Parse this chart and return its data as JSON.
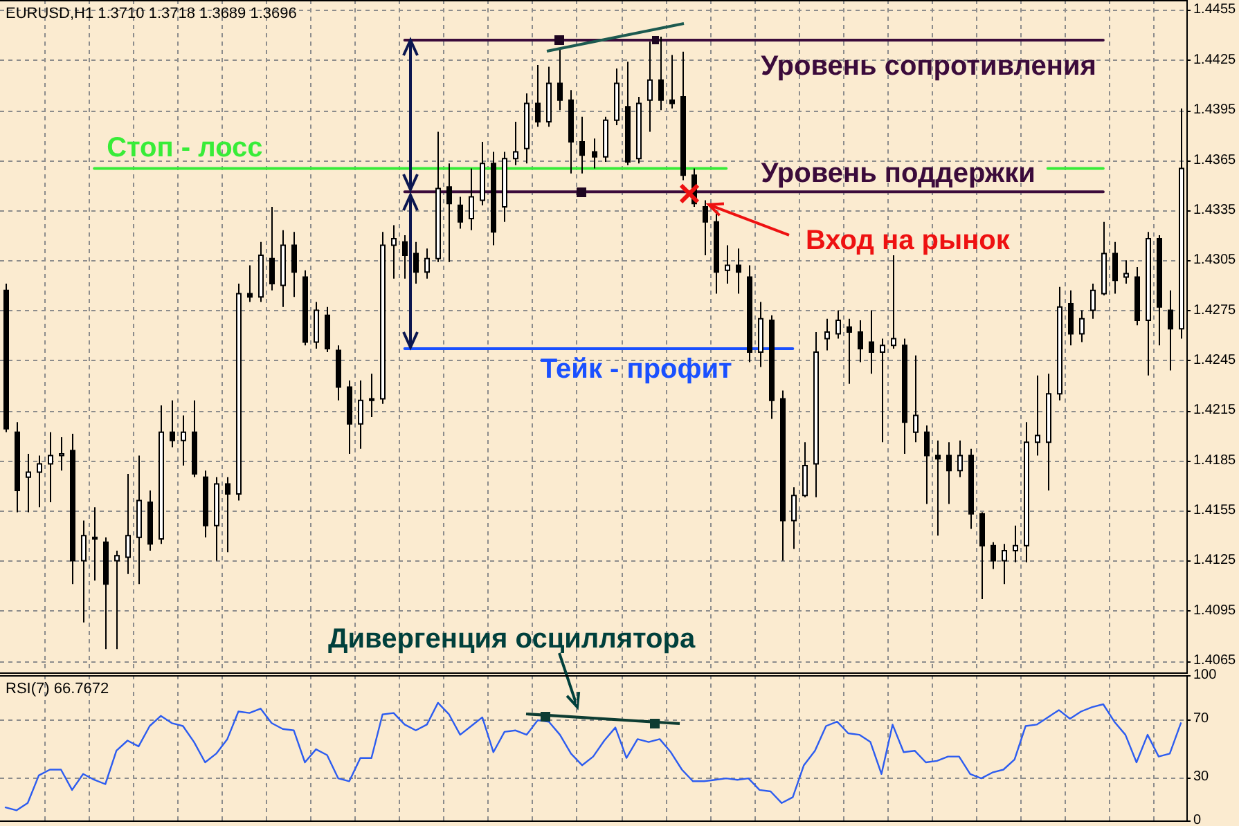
{
  "chart_data": [
    {
      "type": "candlestick",
      "title": "EURUSD,H1 1.3710 1.3718 1.3689 1.3696",
      "categories": [
        null,
        null,
        null,
        null,
        null,
        null,
        null,
        null,
        null,
        null,
        null,
        null,
        null,
        null,
        null,
        null,
        null,
        null,
        null,
        null,
        null,
        null,
        null,
        null,
        null,
        null,
        null,
        null,
        null,
        null,
        null,
        null,
        null,
        null,
        null,
        null,
        null,
        null,
        null,
        null,
        null,
        null,
        null,
        null,
        null,
        null,
        null,
        null,
        null,
        null,
        null,
        null,
        null,
        null,
        null,
        null,
        null,
        null,
        null,
        null,
        null,
        null,
        null,
        null,
        null,
        null,
        null,
        null,
        null,
        null,
        null,
        null,
        null,
        null,
        null,
        null,
        null,
        null,
        null,
        null,
        null,
        null,
        null,
        null,
        null,
        null,
        null,
        null,
        null,
        null,
        null,
        null,
        null,
        null,
        null,
        null,
        null,
        null,
        null,
        null,
        null,
        null,
        null,
        null,
        null,
        null,
        null
      ],
      "ohlc": [
        [
          1.4287,
          1.4291,
          1.4202,
          1.4204
        ],
        [
          1.4202,
          1.4208,
          1.4154,
          1.4167
        ],
        [
          1.4175,
          1.4189,
          1.4154,
          1.4178
        ],
        [
          1.4178,
          1.4188,
          1.4157,
          1.4183
        ],
        [
          1.4183,
          1.4202,
          1.416,
          1.4188
        ],
        [
          1.4188,
          1.4199,
          1.4179,
          1.4189
        ],
        [
          1.4191,
          1.4201,
          1.4111,
          1.4125
        ],
        [
          1.4125,
          1.4149,
          1.4088,
          1.414
        ],
        [
          1.4139,
          1.4157,
          1.4113,
          1.4138
        ],
        [
          1.4136,
          1.4139,
          1.4072,
          1.4111
        ],
        [
          1.4125,
          1.4131,
          1.4072,
          1.4128
        ],
        [
          1.4127,
          1.4177,
          1.4117,
          1.414
        ],
        [
          1.4139,
          1.4188,
          1.4111,
          1.4161
        ],
        [
          1.416,
          1.4167,
          1.4131,
          1.4135
        ],
        [
          1.4138,
          1.4218,
          1.4135,
          1.4202
        ],
        [
          1.4202,
          1.4221,
          1.4193,
          1.4197
        ],
        [
          1.4197,
          1.4212,
          1.4182,
          1.4202
        ],
        [
          1.4202,
          1.4221,
          1.4175,
          1.4177
        ],
        [
          1.4175,
          1.4179,
          1.4139,
          1.4146
        ],
        [
          1.4146,
          1.4175,
          1.4125,
          1.4171
        ],
        [
          1.4171,
          1.4175,
          1.413,
          1.4165
        ],
        [
          1.4165,
          1.4291,
          1.4161,
          1.4285
        ],
        [
          1.4285,
          1.4302,
          1.428,
          1.4283
        ],
        [
          1.4283,
          1.4316,
          1.428,
          1.4308
        ],
        [
          1.4306,
          1.4337,
          1.4287,
          1.4291
        ],
        [
          1.429,
          1.4323,
          1.4277,
          1.4314
        ],
        [
          1.4314,
          1.4322,
          1.4283,
          1.4298
        ],
        [
          1.4295,
          1.4299,
          1.4254,
          1.4256
        ],
        [
          1.4256,
          1.428,
          1.4252,
          1.4275
        ],
        [
          1.4272,
          1.4277,
          1.425,
          1.4252
        ],
        [
          1.4251,
          1.4254,
          1.4221,
          1.4229
        ],
        [
          1.4229,
          1.4233,
          1.4189,
          1.4207
        ],
        [
          1.4207,
          1.4233,
          1.4192,
          1.4221
        ],
        [
          1.4222,
          1.4237,
          1.4211,
          1.4221
        ],
        [
          1.4222,
          1.4322,
          1.4219,
          1.4314
        ],
        [
          1.4314,
          1.4326,
          1.4294,
          1.4318
        ],
        [
          1.4316,
          1.432,
          1.4294,
          1.4308
        ],
        [
          1.4309,
          1.4316,
          1.4291,
          1.4298
        ],
        [
          1.4298,
          1.4312,
          1.4294,
          1.4306
        ],
        [
          1.4306,
          1.4382,
          1.4304,
          1.4348
        ],
        [
          1.4349,
          1.4363,
          1.4304,
          1.4339
        ],
        [
          1.4338,
          1.4343,
          1.4324,
          1.4328
        ],
        [
          1.433,
          1.436,
          1.4323,
          1.4343
        ],
        [
          1.4341,
          1.4376,
          1.4338,
          1.4363
        ],
        [
          1.4363,
          1.437,
          1.4314,
          1.4322
        ],
        [
          1.4337,
          1.437,
          1.4328,
          1.4366
        ],
        [
          1.4366,
          1.4388,
          1.4362,
          1.437
        ],
        [
          1.4372,
          1.4405,
          1.4363,
          1.4399
        ],
        [
          1.4399,
          1.4422,
          1.4385,
          1.4388
        ],
        [
          1.4388,
          1.4421,
          1.4385,
          1.4411
        ],
        [
          1.4411,
          1.4432,
          1.4395,
          1.4401
        ],
        [
          1.4401,
          1.4407,
          1.4357,
          1.4376
        ],
        [
          1.4376,
          1.4391,
          1.4357,
          1.4368
        ],
        [
          1.437,
          1.4378,
          1.436,
          1.4367
        ],
        [
          1.4367,
          1.4391,
          1.4364,
          1.4389
        ],
        [
          1.4389,
          1.442,
          1.4386,
          1.4411
        ],
        [
          1.4397,
          1.4424,
          1.4362,
          1.4364
        ],
        [
          1.4366,
          1.4403,
          1.4363,
          1.4399
        ],
        [
          1.4401,
          1.4436,
          1.4382,
          1.4413
        ],
        [
          1.4413,
          1.4439,
          1.4395,
          1.4401
        ],
        [
          1.4401,
          1.4428,
          1.4396,
          1.4399
        ],
        [
          1.4403,
          1.443,
          1.4353,
          1.4356
        ],
        [
          1.4356,
          1.436,
          1.4337,
          1.4339
        ],
        [
          1.4337,
          1.4341,
          1.4308,
          1.4328
        ],
        [
          1.4328,
          1.4335,
          1.4285,
          1.4298
        ],
        [
          1.4299,
          1.4314,
          1.4291,
          1.4302
        ],
        [
          1.4302,
          1.4312,
          1.4285,
          1.4298
        ],
        [
          1.4295,
          1.4302,
          1.4244,
          1.425
        ],
        [
          1.425,
          1.428,
          1.4241,
          1.427
        ],
        [
          1.4269,
          1.4272,
          1.421,
          1.4221
        ],
        [
          1.4222,
          1.4227,
          1.4125,
          1.4149
        ],
        [
          1.4149,
          1.4169,
          1.4132,
          1.4164
        ],
        [
          1.4164,
          1.4196,
          1.4163,
          1.4182
        ],
        [
          1.4183,
          1.4262,
          1.4163,
          1.425
        ],
        [
          1.4258,
          1.427,
          1.4251,
          1.4262
        ],
        [
          1.4261,
          1.4275,
          1.4258,
          1.4269
        ],
        [
          1.4265,
          1.427,
          1.4231,
          1.4262
        ],
        [
          1.4262,
          1.4269,
          1.4244,
          1.4252
        ],
        [
          1.4256,
          1.4275,
          1.4237,
          1.425
        ],
        [
          1.425,
          1.4258,
          1.4196,
          1.4254
        ],
        [
          1.4254,
          1.4308,
          1.4252,
          1.4258
        ],
        [
          1.4254,
          1.4258,
          1.4189,
          1.4208
        ],
        [
          1.4202,
          1.4248,
          1.4196,
          1.4212
        ],
        [
          1.4202,
          1.4206,
          1.4159,
          1.4188
        ],
        [
          1.4188,
          1.4197,
          1.414,
          1.4186
        ],
        [
          1.4188,
          1.4196,
          1.4159,
          1.4179
        ],
        [
          1.4179,
          1.4197,
          1.4175,
          1.4188
        ],
        [
          1.4188,
          1.4192,
          1.4144,
          1.4153
        ],
        [
          1.4153,
          1.4154,
          1.4102,
          1.4134
        ],
        [
          1.4134,
          1.4136,
          1.412,
          1.4125
        ],
        [
          1.4125,
          1.4135,
          1.4111,
          1.4131
        ],
        [
          1.4131,
          1.4146,
          1.4124,
          1.4134
        ],
        [
          1.4134,
          1.4208,
          1.4124,
          1.4196
        ],
        [
          1.4196,
          1.4236,
          1.4188,
          1.42
        ],
        [
          1.4196,
          1.4237,
          1.4167,
          1.4225
        ],
        [
          1.4225,
          1.4289,
          1.4221,
          1.4277
        ],
        [
          1.4279,
          1.4287,
          1.4254,
          1.4261
        ],
        [
          1.4261,
          1.4275,
          1.4256,
          1.427
        ],
        [
          1.4275,
          1.4291,
          1.427,
          1.4287
        ],
        [
          1.4285,
          1.4328,
          1.4284,
          1.4309
        ],
        [
          1.4309,
          1.4316,
          1.4285,
          1.4293
        ],
        [
          1.4295,
          1.4305,
          1.4291,
          1.4297
        ],
        [
          1.4295,
          1.4301,
          1.4266,
          1.4269
        ],
        [
          1.4269,
          1.4322,
          1.4236,
          1.4318
        ],
        [
          1.4318,
          1.432,
          1.4254,
          1.4277
        ],
        [
          1.4275,
          1.4287,
          1.4239,
          1.4264
        ],
        [
          1.4264,
          1.4396,
          1.4258,
          1.436
        ]
      ],
      "series": [
        {
          "type": "line",
          "name": "Уровень сопротивления",
          "color": "#3b0b3b",
          "values": [
            null,
            null,
            null,
            null,
            null,
            null,
            null,
            null,
            null,
            null,
            null,
            null,
            null,
            null,
            null,
            null,
            null,
            null,
            null,
            null,
            null,
            null,
            null,
            null,
            null,
            null,
            null,
            null,
            null,
            null,
            null,
            null,
            null,
            null,
            null,
            null,
            1.4437,
            1.4437,
            1.4437,
            1.4437,
            1.4437,
            1.4437,
            1.4437,
            1.4437,
            1.4437,
            1.4437,
            1.4437,
            1.4437,
            1.4437,
            1.4437,
            1.4437,
            1.4437,
            1.4437,
            1.4437,
            1.4437,
            1.4437,
            1.4437,
            1.4437,
            1.4437,
            1.4437,
            1.4437,
            1.4437,
            1.4437,
            1.4437,
            1.4437,
            1.4437,
            1.4437,
            1.4437,
            1.4437,
            1.4437,
            1.4437,
            1.4437,
            1.4437,
            1.4437,
            1.4437,
            1.4437,
            1.4437,
            1.4437,
            1.4437,
            1.4437,
            1.4437,
            1.4437,
            1.4437,
            1.4437,
            1.4437,
            1.4437,
            1.4437,
            1.4437,
            1.4437,
            1.4437,
            1.4437,
            1.4437,
            1.4437,
            1.4437,
            1.4437,
            1.4437,
            1.4437,
            1.4437,
            1.4437,
            1.4437,
            null,
            null,
            null,
            null,
            null,
            null,
            null
          ]
        },
        {
          "type": "line",
          "name": "Уровень поддержки",
          "color": "#3b0b3b",
          "values": [
            null,
            null,
            null,
            null,
            null,
            null,
            null,
            null,
            null,
            null,
            null,
            null,
            null,
            null,
            null,
            null,
            null,
            null,
            null,
            null,
            null,
            null,
            null,
            null,
            null,
            null,
            null,
            null,
            null,
            null,
            null,
            null,
            null,
            null,
            null,
            null,
            1.4346,
            1.4346,
            1.4346,
            1.4346,
            1.4346,
            1.4346,
            1.4346,
            1.4346,
            1.4346,
            1.4346,
            1.4346,
            1.4346,
            1.4346,
            1.4346,
            1.4346,
            1.4346,
            1.4346,
            1.4346,
            1.4346,
            1.4346,
            1.4346,
            1.4346,
            1.4346,
            1.4346,
            1.4346,
            1.4346,
            1.4346,
            1.4346,
            1.4346,
            1.4346,
            1.4346,
            1.4346,
            1.4346,
            1.4346,
            1.4346,
            1.4346,
            1.4346,
            1.4346,
            1.4346,
            1.4346,
            1.4346,
            1.4346,
            1.4346,
            1.4346,
            1.4346,
            1.4346,
            1.4346,
            1.4346,
            1.4346,
            1.4346,
            1.4346,
            1.4346,
            1.4346,
            1.4346,
            1.4346,
            1.4346,
            1.4346,
            1.4346,
            1.4346,
            1.4346,
            1.4346,
            1.4346,
            1.4346,
            1.4346,
            null,
            null,
            null,
            null,
            null,
            null,
            null
          ]
        },
        {
          "type": "line",
          "name": "Стоп - лосс",
          "color": "#38ec38",
          "values": [
            null,
            null,
            null,
            null,
            null,
            null,
            null,
            null,
            1.436,
            1.436,
            1.436,
            1.436,
            1.436,
            1.436,
            1.436,
            1.436,
            1.436,
            1.436,
            1.436,
            1.436,
            1.436,
            1.436,
            1.436,
            1.436,
            1.436,
            1.436,
            1.436,
            1.436,
            1.436,
            1.436,
            1.436,
            1.436,
            1.436,
            1.436,
            1.436,
            1.436,
            1.436,
            1.436,
            1.436,
            1.436,
            1.436,
            1.436,
            1.436,
            1.436,
            1.436,
            1.436,
            1.436,
            1.436,
            1.436,
            1.436,
            1.436,
            1.436,
            1.436,
            1.436,
            1.436,
            1.436,
            1.436,
            1.436,
            1.436,
            1.436,
            1.436,
            1.436,
            1.436,
            1.436,
            1.436,
            1.436,
            null,
            null,
            null,
            null,
            null,
            null,
            null,
            null,
            null,
            null,
            null,
            null,
            null,
            null,
            null,
            null,
            null,
            null,
            null,
            null,
            null,
            null,
            null,
            null,
            null,
            null,
            null,
            null,
            1.436,
            1.436,
            1.436,
            1.436,
            1.436,
            1.436,
            null,
            null,
            null,
            null,
            null,
            null,
            null
          ]
        },
        {
          "type": "line",
          "name": "Тейк - профит",
          "color": "#1a50ff",
          "values": [
            null,
            null,
            null,
            null,
            null,
            null,
            null,
            null,
            null,
            null,
            null,
            null,
            null,
            null,
            null,
            null,
            null,
            null,
            null,
            null,
            null,
            null,
            null,
            null,
            null,
            null,
            null,
            null,
            null,
            null,
            null,
            null,
            null,
            null,
            null,
            null,
            1.4252,
            1.4252,
            1.4252,
            1.4252,
            1.4252,
            1.4252,
            1.4252,
            1.4252,
            1.4252,
            1.4252,
            1.4252,
            1.4252,
            1.4252,
            1.4252,
            1.4252,
            1.4252,
            1.4252,
            1.4252,
            1.4252,
            1.4252,
            1.4252,
            1.4252,
            1.4252,
            1.4252,
            1.4252,
            1.4252,
            1.4252,
            1.4252,
            1.4252,
            1.4252,
            1.4252,
            1.4252,
            1.4252,
            1.4252,
            1.4252,
            1.4252,
            null,
            null,
            null,
            null,
            null,
            null,
            null,
            null,
            null,
            null,
            null,
            null,
            null,
            null,
            null,
            null,
            null,
            null,
            null,
            null,
            null,
            null,
            null,
            null,
            null,
            null,
            null,
            null,
            null,
            null,
            null,
            null,
            null,
            null,
            null
          ]
        }
      ],
      "ylim": [
        1.4058,
        1.4461
      ],
      "yticks": [
        1.4065,
        1.4095,
        1.4125,
        1.4155,
        1.4185,
        1.4215,
        1.4245,
        1.4275,
        1.4305,
        1.4335,
        1.4365,
        1.4395,
        1.4425,
        1.4455
      ],
      "grid": true,
      "tick_labels": "y",
      "annotations": [
        {
          "text": "Вход на рынок",
          "y": 1.4345
        },
        "Дивергенция осциллятора"
      ]
    },
    {
      "type": "line",
      "title": "RSI(7) 66.7672",
      "categories": [
        null,
        null,
        null,
        null,
        null,
        null,
        null,
        null,
        null,
        null,
        null,
        null,
        null,
        null,
        null,
        null,
        null,
        null,
        null,
        null,
        null,
        null,
        null,
        null,
        null,
        null,
        null,
        null,
        null,
        null,
        null,
        null,
        null,
        null,
        null,
        null,
        null,
        null,
        null,
        null,
        null,
        null,
        null,
        null,
        null,
        null,
        null,
        null,
        null,
        null,
        null,
        null,
        null,
        null,
        null,
        null,
        null,
        null,
        null,
        null,
        null,
        null,
        null,
        null,
        null,
        null,
        null,
        null,
        null,
        null,
        null,
        null,
        null,
        null,
        null,
        null,
        null,
        null,
        null,
        null,
        null,
        null,
        null,
        null,
        null,
        null,
        null,
        null,
        null,
        null,
        null,
        null,
        null,
        null,
        null,
        null,
        null,
        null,
        null,
        null,
        null,
        null,
        null,
        null,
        null,
        null,
        null
      ],
      "color": "#2c5cf0",
      "values": [
        9,
        7,
        12,
        31,
        35,
        35,
        21,
        32,
        28,
        25,
        48,
        55,
        51,
        65,
        72,
        67,
        65,
        54,
        40,
        46,
        56,
        75,
        74,
        77,
        67,
        63,
        62,
        40,
        49,
        45,
        29,
        27,
        43,
        43,
        73,
        74,
        66,
        62,
        66,
        81,
        73,
        59,
        65,
        71,
        47,
        61,
        62,
        59,
        69,
        68,
        59,
        46,
        38,
        44,
        55,
        64,
        43,
        56,
        54,
        56,
        47,
        35,
        27,
        27,
        28,
        29,
        28,
        29,
        21,
        20,
        12,
        16,
        38,
        48,
        65,
        68,
        60,
        59,
        54,
        32,
        66,
        47,
        48,
        40,
        41,
        44,
        44,
        32,
        29,
        33,
        35,
        42,
        65,
        66,
        71,
        76,
        70,
        75,
        78,
        80,
        68,
        59,
        40,
        59,
        44,
        46,
        67
      ],
      "ylim": [
        0,
        100
      ],
      "yticks": [
        0,
        30,
        70,
        100
      ],
      "grid": true,
      "tick_labels": "y"
    }
  ]
}
